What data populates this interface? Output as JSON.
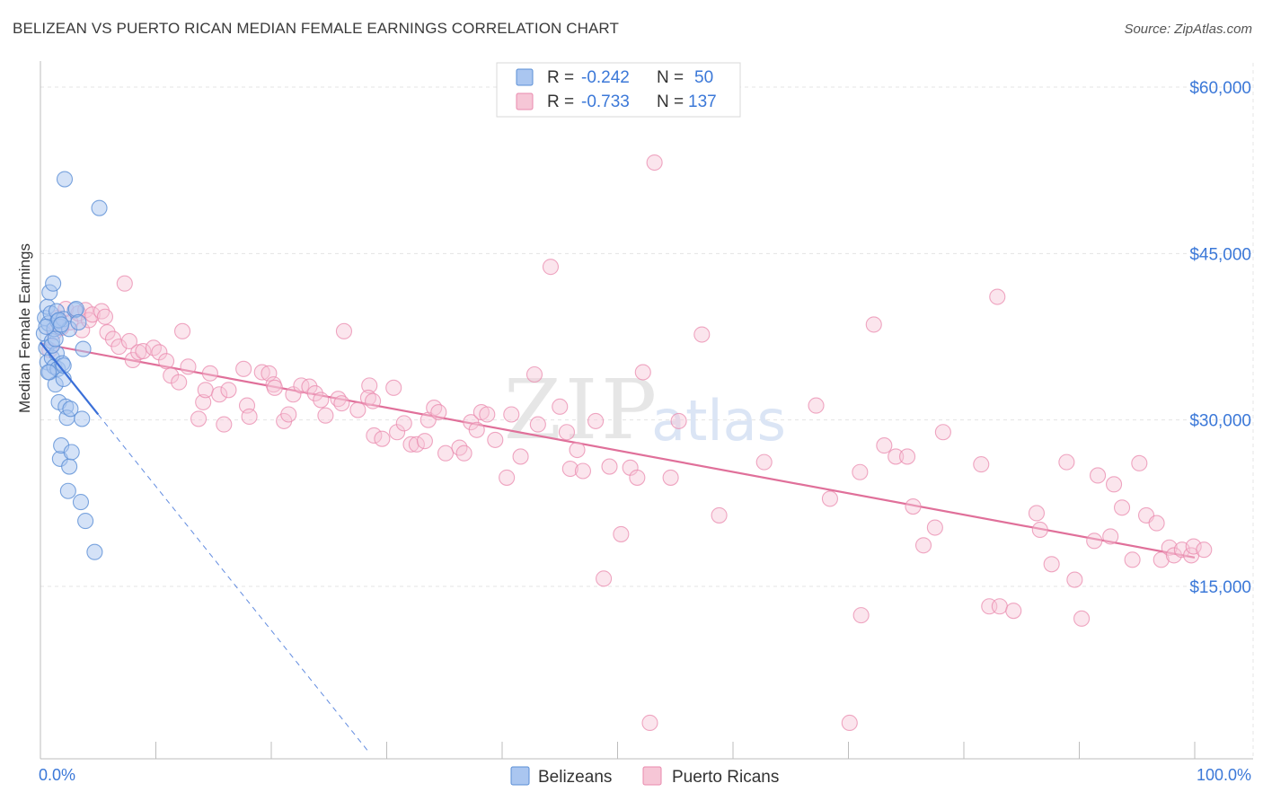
{
  "title": "BELIZEAN VS PUERTO RICAN MEDIAN FEMALE EARNINGS CORRELATION CHART",
  "source": "Source: ZipAtlas.com",
  "watermark": {
    "zip": "ZIP",
    "atlas": "atlas"
  },
  "colors": {
    "blue": "#5b8fd6",
    "blue_fill": "#aac6f0",
    "blue_line": "#3a6fd8",
    "pink": "#e989ad",
    "pink_fill": "#f6c6d6",
    "pink_line": "#e0709a",
    "axis_text": "#3b78d8",
    "grid": "#e4e4e4"
  },
  "legend": {
    "items": [
      {
        "r_label": "R =",
        "r_value": "-0.242",
        "n_label": "N =",
        "n_value": "50"
      },
      {
        "r_label": "R =",
        "r_value": "-0.733",
        "n_label": "N =",
        "n_value": "137"
      }
    ]
  },
  "bottom_legend": [
    "Belizeans",
    "Puerto Ricans"
  ],
  "chart_data": {
    "type": "scatter",
    "title": "BELIZEAN VS PUERTO RICAN MEDIAN FEMALE EARNINGS CORRELATION CHART",
    "xlabel": "",
    "ylabel": "Median Female Earnings",
    "xlim": [
      0,
      100
    ],
    "ylim": [
      0,
      62500
    ],
    "x_tick_labels": [
      "0.0%",
      "100.0%"
    ],
    "y_ticks": [
      15000,
      30000,
      45000,
      60000
    ],
    "y_tick_labels": [
      "$15,000",
      "$30,000",
      "$45,000",
      "$60,000"
    ],
    "grid": true,
    "legend_position": "top-center",
    "series": [
      {
        "name": "Belizeans",
        "r": -0.242,
        "n": 50,
        "trend": {
          "x0": 0,
          "y0": 37000,
          "x1": 5,
          "y1": 30500,
          "dash_to_x": 28.5,
          "dash_to_y": 0
        },
        "points": [
          [
            0.3,
            37800
          ],
          [
            0.4,
            39200
          ],
          [
            0.5,
            36500
          ],
          [
            0.6,
            40200
          ],
          [
            0.6,
            35200
          ],
          [
            0.7,
            38700
          ],
          [
            0.8,
            41500
          ],
          [
            0.8,
            34300
          ],
          [
            0.9,
            39600
          ],
          [
            1.0,
            37100
          ],
          [
            1.0,
            35600
          ],
          [
            1.1,
            42300
          ],
          [
            1.2,
            38200
          ],
          [
            1.2,
            34800
          ],
          [
            1.3,
            33200
          ],
          [
            1.4,
            39800
          ],
          [
            1.4,
            36000
          ],
          [
            1.5,
            38900
          ],
          [
            1.5,
            34600
          ],
          [
            1.6,
            31600
          ],
          [
            1.7,
            38400
          ],
          [
            1.7,
            26500
          ],
          [
            1.8,
            27700
          ],
          [
            1.9,
            35100
          ],
          [
            2.0,
            39100
          ],
          [
            2.0,
            33700
          ],
          [
            2.1,
            51700
          ],
          [
            2.2,
            31200
          ],
          [
            2.3,
            30200
          ],
          [
            2.4,
            23600
          ],
          [
            2.5,
            25800
          ],
          [
            2.5,
            38200
          ],
          [
            2.6,
            31000
          ],
          [
            2.7,
            27100
          ],
          [
            3.0,
            39900
          ],
          [
            3.1,
            40000
          ],
          [
            3.3,
            38800
          ],
          [
            3.5,
            22600
          ],
          [
            3.6,
            30100
          ],
          [
            3.7,
            36400
          ],
          [
            3.9,
            20900
          ],
          [
            4.7,
            18100
          ],
          [
            5.1,
            49100
          ],
          [
            0.7,
            34300
          ],
          [
            1.0,
            36700
          ],
          [
            0.5,
            38400
          ],
          [
            1.3,
            37300
          ],
          [
            1.6,
            39000
          ],
          [
            1.8,
            38600
          ],
          [
            2.0,
            34900
          ]
        ]
      },
      {
        "name": "Puerto Ricans",
        "r": -0.733,
        "n": 137,
        "trend": {
          "x0": 0,
          "y0": 36900,
          "x1": 100,
          "y1": 17600
        },
        "points": [
          [
            0.8,
            36300
          ],
          [
            1.2,
            37900
          ],
          [
            1.5,
            39200
          ],
          [
            1.8,
            38300
          ],
          [
            2.2,
            40000
          ],
          [
            2.6,
            38800
          ],
          [
            3.3,
            39600
          ],
          [
            3.6,
            38100
          ],
          [
            3.9,
            39900
          ],
          [
            4.2,
            39000
          ],
          [
            4.5,
            39500
          ],
          [
            5.3,
            39800
          ],
          [
            5.6,
            39300
          ],
          [
            5.8,
            37900
          ],
          [
            6.3,
            37300
          ],
          [
            6.8,
            36600
          ],
          [
            7.3,
            42300
          ],
          [
            7.7,
            37100
          ],
          [
            8.0,
            35400
          ],
          [
            8.5,
            36100
          ],
          [
            8.9,
            36200
          ],
          [
            9.8,
            36500
          ],
          [
            10.3,
            36100
          ],
          [
            10.9,
            35300
          ],
          [
            11.3,
            34000
          ],
          [
            12.0,
            33400
          ],
          [
            12.3,
            38000
          ],
          [
            12.8,
            34800
          ],
          [
            13.7,
            30100
          ],
          [
            14.1,
            31600
          ],
          [
            14.3,
            32700
          ],
          [
            14.7,
            34200
          ],
          [
            15.5,
            32300
          ],
          [
            15.9,
            29600
          ],
          [
            16.3,
            32700
          ],
          [
            17.6,
            34600
          ],
          [
            17.9,
            31300
          ],
          [
            18.1,
            30300
          ],
          [
            19.2,
            34300
          ],
          [
            19.8,
            34200
          ],
          [
            20.2,
            33200
          ],
          [
            20.3,
            32900
          ],
          [
            21.1,
            29900
          ],
          [
            21.5,
            30500
          ],
          [
            21.9,
            32300
          ],
          [
            22.6,
            33100
          ],
          [
            23.3,
            33000
          ],
          [
            23.8,
            32400
          ],
          [
            24.3,
            31800
          ],
          [
            24.7,
            30400
          ],
          [
            25.8,
            31900
          ],
          [
            26.1,
            31500
          ],
          [
            26.3,
            38000
          ],
          [
            27.5,
            30900
          ],
          [
            28.5,
            33100
          ],
          [
            28.4,
            32000
          ],
          [
            28.8,
            31700
          ],
          [
            28.9,
            28600
          ],
          [
            29.6,
            28300
          ],
          [
            30.6,
            32900
          ],
          [
            30.9,
            28900
          ],
          [
            31.5,
            29700
          ],
          [
            32.1,
            27800
          ],
          [
            32.6,
            27800
          ],
          [
            33.3,
            28100
          ],
          [
            33.6,
            30000
          ],
          [
            34.1,
            31100
          ],
          [
            34.5,
            30700
          ],
          [
            35.1,
            27000
          ],
          [
            36.3,
            27500
          ],
          [
            36.7,
            27000
          ],
          [
            37.3,
            29800
          ],
          [
            37.8,
            29100
          ],
          [
            38.2,
            30700
          ],
          [
            38.7,
            30500
          ],
          [
            39.4,
            28200
          ],
          [
            40.4,
            24800
          ],
          [
            40.8,
            30500
          ],
          [
            41.6,
            26700
          ],
          [
            42.8,
            34100
          ],
          [
            43.1,
            29600
          ],
          [
            44.2,
            43800
          ],
          [
            45.0,
            31200
          ],
          [
            45.6,
            28900
          ],
          [
            45.9,
            25600
          ],
          [
            46.5,
            27300
          ],
          [
            47.0,
            25400
          ],
          [
            48.1,
            29900
          ],
          [
            48.8,
            15700
          ],
          [
            49.3,
            25800
          ],
          [
            50.3,
            19700
          ],
          [
            51.1,
            25700
          ],
          [
            51.7,
            24800
          ],
          [
            52.2,
            34300
          ],
          [
            53.2,
            53200
          ],
          [
            54.6,
            24800
          ],
          [
            55.3,
            29900
          ],
          [
            57.3,
            37700
          ],
          [
            58.8,
            21400
          ],
          [
            62.7,
            26200
          ],
          [
            67.2,
            31300
          ],
          [
            68.4,
            22900
          ],
          [
            71.0,
            25300
          ],
          [
            71.1,
            12400
          ],
          [
            72.2,
            38600
          ],
          [
            73.1,
            27700
          ],
          [
            74.1,
            26700
          ],
          [
            75.1,
            26700
          ],
          [
            75.6,
            22200
          ],
          [
            76.5,
            18700
          ],
          [
            77.5,
            20300
          ],
          [
            78.2,
            28900
          ],
          [
            81.5,
            26000
          ],
          [
            82.2,
            13200
          ],
          [
            82.9,
            41100
          ],
          [
            83.1,
            13200
          ],
          [
            84.3,
            12800
          ],
          [
            86.3,
            21600
          ],
          [
            86.6,
            20100
          ],
          [
            87.6,
            17000
          ],
          [
            88.9,
            26200
          ],
          [
            89.6,
            15600
          ],
          [
            90.2,
            12100
          ],
          [
            91.3,
            19100
          ],
          [
            91.6,
            25000
          ],
          [
            92.7,
            19500
          ],
          [
            93.0,
            24200
          ],
          [
            93.7,
            22100
          ],
          [
            94.6,
            17400
          ],
          [
            95.2,
            26100
          ],
          [
            95.8,
            21400
          ],
          [
            96.7,
            20700
          ],
          [
            97.1,
            17400
          ],
          [
            97.8,
            18500
          ],
          [
            98.2,
            17800
          ],
          [
            98.9,
            18300
          ],
          [
            99.7,
            17800
          ],
          [
            99.9,
            18600
          ],
          [
            100.8,
            18300
          ],
          [
            52.8,
            2700
          ],
          [
            70.1,
            2700
          ]
        ]
      }
    ]
  }
}
